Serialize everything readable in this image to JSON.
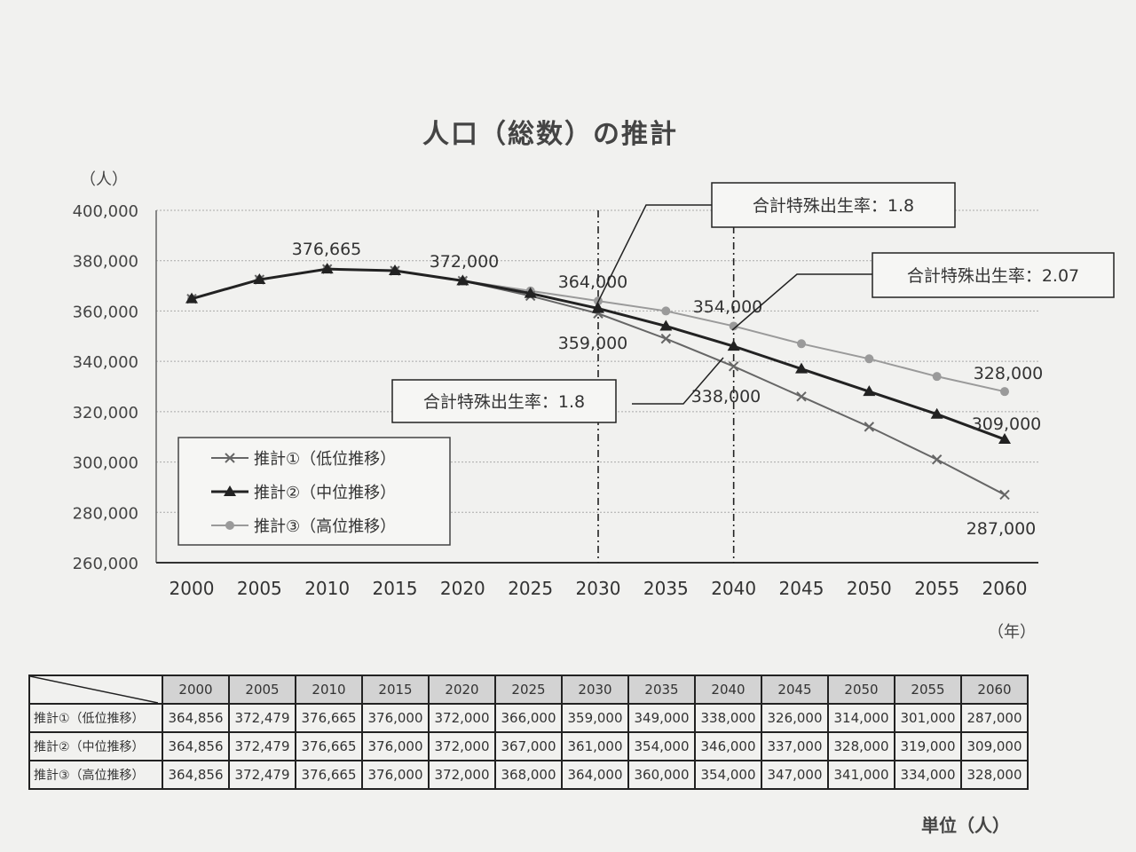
{
  "chart_data": {
    "type": "line",
    "title": "人口（総数）の推計",
    "ylabel": "（人）",
    "xlabel": "（年）",
    "ylim": [
      260000,
      400000
    ],
    "yticks": [
      "260,000",
      "280,000",
      "300,000",
      "320,000",
      "340,000",
      "360,000",
      "380,000",
      "400,000"
    ],
    "x": [
      "2000",
      "2005",
      "2010",
      "2015",
      "2020",
      "2025",
      "2030",
      "2035",
      "2040",
      "2045",
      "2050",
      "2055",
      "2060"
    ],
    "series": [
      {
        "name": "推計①（低位推移）",
        "marker": "x",
        "color": "#666666",
        "values": [
          364856,
          372479,
          376665,
          376000,
          372000,
          366000,
          359000,
          349000,
          338000,
          326000,
          314000,
          301000,
          287000
        ]
      },
      {
        "name": "推計②（中位推移）",
        "marker": "triangle",
        "color": "#222222",
        "values": [
          364856,
          372479,
          376665,
          376000,
          372000,
          367000,
          361000,
          354000,
          346000,
          337000,
          328000,
          319000,
          309000
        ]
      },
      {
        "name": "推計③（高位推移）",
        "marker": "circle",
        "color": "#9a9a9a",
        "values": [
          364856,
          372479,
          376665,
          376000,
          372000,
          368000,
          364000,
          360000,
          354000,
          347000,
          341000,
          334000,
          328000
        ]
      }
    ],
    "data_labels": [
      "376,665",
      "372,000",
      "364,000",
      "359,000",
      "354,000",
      "338,000",
      "328,000",
      "309,000",
      "287,000"
    ],
    "annotations": [
      "合計特殊出生率：1.8",
      "合計特殊出生率：2.07",
      "合計特殊出生率：1.8"
    ],
    "grid": "horizontal",
    "legend": "bottom-left"
  },
  "table": {
    "rows": [
      {
        "label": "推計①（低位推移）",
        "values": [
          "364,856",
          "372,479",
          "376,665",
          "376,000",
          "372,000",
          "366,000",
          "359,000",
          "349,000",
          "338,000",
          "326,000",
          "314,000",
          "301,000",
          "287,000"
        ]
      },
      {
        "label": "推計②（中位推移）",
        "values": [
          "364,856",
          "372,479",
          "376,665",
          "376,000",
          "372,000",
          "367,000",
          "361,000",
          "354,000",
          "346,000",
          "337,000",
          "328,000",
          "319,000",
          "309,000"
        ]
      },
      {
        "label": "推計③（高位推移）",
        "values": [
          "364,856",
          "372,479",
          "376,665",
          "376,000",
          "372,000",
          "368,000",
          "364,000",
          "360,000",
          "354,000",
          "347,000",
          "341,000",
          "334,000",
          "328,000"
        ]
      }
    ],
    "unit": "単位（人）"
  }
}
